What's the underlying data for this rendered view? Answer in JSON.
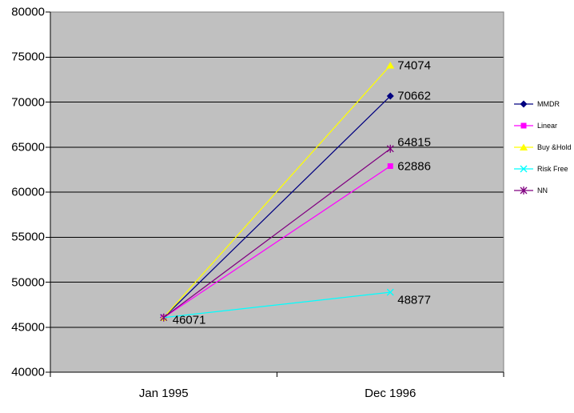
{
  "page": {
    "background": "#FFFFFF"
  },
  "chart_data": {
    "type": "line",
    "title": "",
    "xlabel": "",
    "ylabel": "",
    "categories": [
      "Jan 1995",
      "Dec 1996"
    ],
    "series": [
      {
        "name": "MMDR",
        "color": "#000080",
        "marker": "diamond",
        "values": [
          46071,
          70662
        ]
      },
      {
        "name": "Linear",
        "color": "#FF00FF",
        "marker": "square",
        "values": [
          46071,
          62886
        ]
      },
      {
        "name": "Buy &Hold",
        "color": "#FFFF00",
        "marker": "triangle",
        "values": [
          46071,
          74074
        ]
      },
      {
        "name": "Risk Free",
        "color": "#00FFFF",
        "marker": "x",
        "values": [
          46071,
          48877
        ]
      },
      {
        "name": "NN",
        "color": "#800080",
        "marker": "star",
        "values": [
          46071,
          64815
        ]
      }
    ],
    "ylim": [
      40000,
      80000
    ],
    "ytick_step": 5000,
    "yticks": [
      "40000",
      "45000",
      "50000",
      "55000",
      "60000",
      "65000",
      "70000",
      "75000",
      "80000"
    ],
    "grid": true,
    "legend_position": "right",
    "legend_entries": [
      "MMDR",
      "Linear",
      "Buy &Hold",
      "Risk Free",
      "NN"
    ],
    "start_label": "46071",
    "end_labels": [
      "70662",
      "62886",
      "74074",
      "48877",
      "64815"
    ],
    "colors": {
      "plot_bg": "#C0C0C0",
      "plot_border": "#808080",
      "gridline": "#000000",
      "axis": "#000000",
      "text": "#000000"
    }
  }
}
